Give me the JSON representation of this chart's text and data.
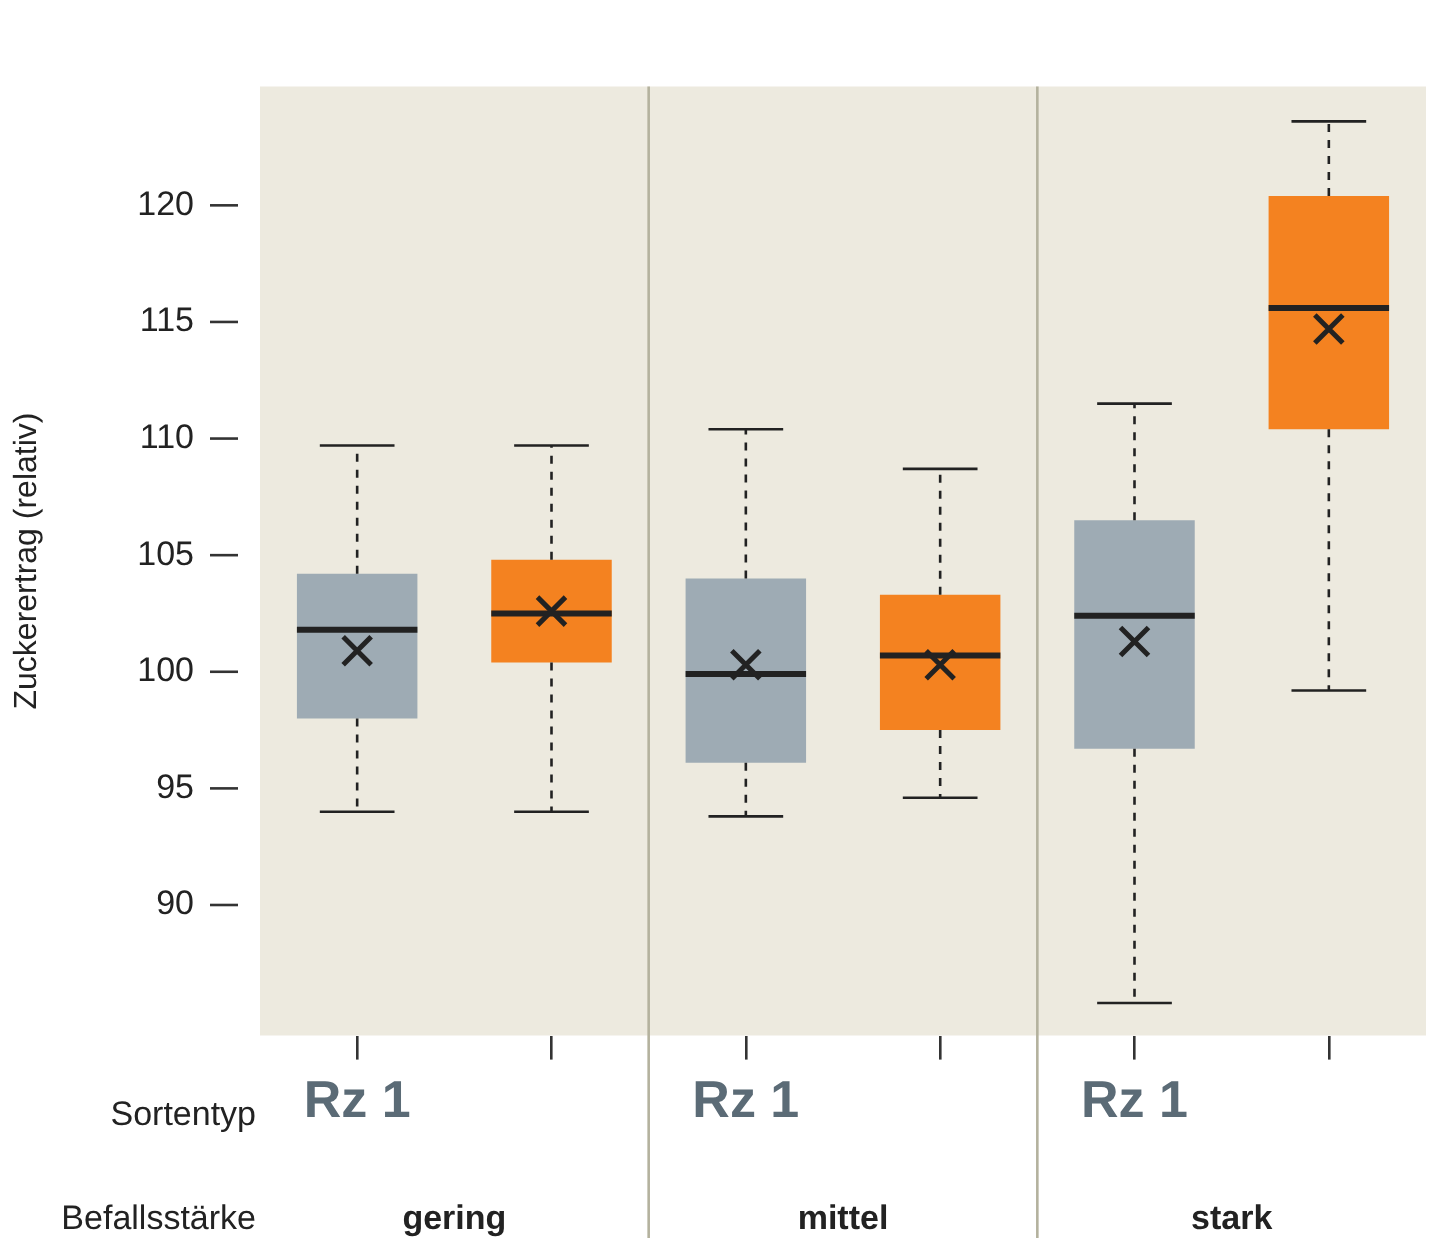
{
  "chart_data": {
    "type": "box",
    "ylabel": "Zuckerertrag (relativ)",
    "categories": [
      "Rz 1",
      null,
      "Rz 1",
      null,
      "Rz 1",
      null
    ],
    "boxes": [
      {
        "low": 94.0,
        "q1": 98.0,
        "median": 101.8,
        "q3": 104.2,
        "high": 109.7,
        "mean": 100.9
      },
      {
        "low": 94.0,
        "q1": 100.4,
        "median": 102.5,
        "q3": 104.8,
        "high": 109.7,
        "mean": 102.6
      },
      {
        "low": 93.8,
        "q1": 96.1,
        "median": 99.9,
        "q3": 104.0,
        "high": 110.4,
        "mean": 100.3
      },
      {
        "low": 94.6,
        "q1": 97.5,
        "median": 100.7,
        "q3": 103.3,
        "high": 108.7,
        "mean": 100.3
      },
      {
        "low": 85.8,
        "q1": 96.7,
        "median": 102.4,
        "q3": 106.5,
        "high": 111.5,
        "mean": 101.3
      },
      {
        "low": 99.2,
        "q1": 110.4,
        "median": 115.6,
        "q3": 120.4,
        "high": 123.6,
        "mean": 114.7
      }
    ],
    "colors": [
      "#9eabb4",
      "#f48220",
      "#9eabb4",
      "#f48220",
      "#9eabb4",
      "#f48220"
    ],
    "ylim": [
      84.4,
      125.1
    ],
    "yticks": [
      90,
      95,
      100,
      105,
      110,
      115,
      120
    ],
    "marker": "cross",
    "grid": false,
    "legend": false,
    "annotations": [
      "Sortentyp",
      "Befallsstärke",
      "gering",
      "mittel",
      "stark"
    ]
  }
}
